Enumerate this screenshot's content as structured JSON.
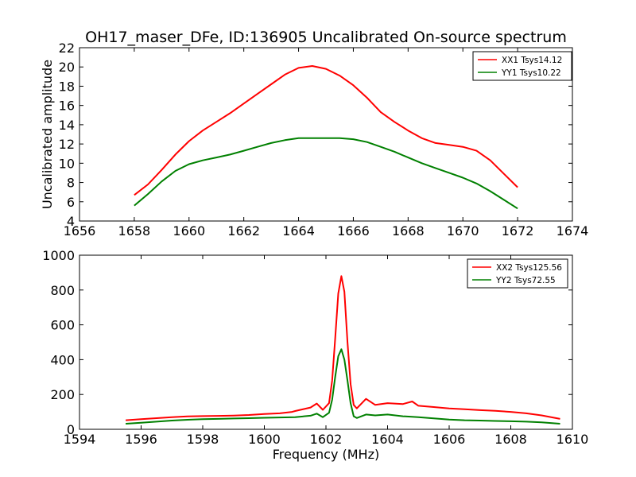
{
  "figure": {
    "title": "OH17_maser_DFe, ID:136905 Uncalibrated On-source spectrum",
    "xlabel": "Frequency (MHz)",
    "ylabel": "Uncalibrated amplitude"
  },
  "chart_data": [
    {
      "type": "line",
      "title": "OH17_maser_DFe, ID:136905 Uncalibrated On-source spectrum",
      "xlabel": "",
      "ylabel": "Uncalibrated amplitude",
      "xlim": [
        1656,
        1674
      ],
      "ylim": [
        4,
        22
      ],
      "xticks": [
        1656,
        1658,
        1660,
        1662,
        1664,
        1666,
        1668,
        1670,
        1672,
        1674
      ],
      "yticks": [
        4,
        6,
        8,
        10,
        12,
        14,
        16,
        18,
        20,
        22
      ],
      "grid": false,
      "legend_position": "top-right",
      "series": [
        {
          "name": "XX1 Tsys14.12",
          "color": "#ff0000",
          "x": [
            1658.0,
            1658.5,
            1659.0,
            1659.5,
            1660.0,
            1660.5,
            1661.0,
            1661.5,
            1662.0,
            1662.5,
            1663.0,
            1663.5,
            1664.0,
            1664.5,
            1665.0,
            1665.5,
            1666.0,
            1666.5,
            1667.0,
            1667.5,
            1668.0,
            1668.5,
            1669.0,
            1669.5,
            1670.0,
            1670.5,
            1671.0,
            1671.5,
            1672.0
          ],
          "y": [
            6.7,
            7.8,
            9.3,
            10.9,
            12.3,
            13.4,
            14.3,
            15.2,
            16.2,
            17.2,
            18.2,
            19.2,
            19.9,
            20.1,
            19.8,
            19.1,
            18.1,
            16.8,
            15.3,
            14.3,
            13.4,
            12.6,
            12.1,
            11.9,
            11.7,
            11.3,
            10.3,
            8.9,
            7.5
          ]
        },
        {
          "name": "YY1 Tsys10.22",
          "color": "#008000",
          "x": [
            1658.0,
            1658.5,
            1659.0,
            1659.5,
            1660.0,
            1660.5,
            1661.0,
            1661.5,
            1662.0,
            1662.5,
            1663.0,
            1663.5,
            1664.0,
            1664.5,
            1665.0,
            1665.5,
            1666.0,
            1666.5,
            1667.0,
            1667.5,
            1668.0,
            1668.5,
            1669.0,
            1669.5,
            1670.0,
            1670.5,
            1671.0,
            1671.5,
            1672.0
          ],
          "y": [
            5.6,
            6.8,
            8.1,
            9.2,
            9.9,
            10.3,
            10.6,
            10.9,
            11.3,
            11.7,
            12.1,
            12.4,
            12.6,
            12.6,
            12.6,
            12.6,
            12.5,
            12.2,
            11.7,
            11.2,
            10.6,
            10.0,
            9.5,
            9.0,
            8.5,
            7.9,
            7.1,
            6.2,
            5.3
          ]
        }
      ]
    },
    {
      "type": "line",
      "title": "",
      "xlabel": "Frequency (MHz)",
      "ylabel": "",
      "xlim": [
        1594,
        1610
      ],
      "ylim": [
        0,
        1000
      ],
      "xticks": [
        1594,
        1596,
        1598,
        1600,
        1602,
        1604,
        1606,
        1608,
        1610
      ],
      "yticks": [
        0,
        200,
        400,
        600,
        800,
        1000
      ],
      "grid": false,
      "legend_position": "top-right",
      "series": [
        {
          "name": "XX2 Tsys125.56",
          "color": "#ff0000",
          "x": [
            1595.5,
            1596.0,
            1596.5,
            1597.0,
            1597.5,
            1598.0,
            1598.5,
            1599.0,
            1599.5,
            1600.0,
            1600.5,
            1600.9,
            1601.0,
            1601.5,
            1601.7,
            1601.9,
            1602.1,
            1602.2,
            1602.3,
            1602.4,
            1602.5,
            1602.6,
            1602.7,
            1602.8,
            1602.9,
            1603.0,
            1603.3,
            1603.6,
            1604.0,
            1604.5,
            1604.8,
            1605.0,
            1605.5,
            1606.0,
            1606.5,
            1607.0,
            1607.5,
            1608.0,
            1608.5,
            1609.0,
            1609.6
          ],
          "y": [
            52,
            58,
            64,
            70,
            74,
            76,
            77,
            79,
            82,
            88,
            92,
            100,
            105,
            125,
            148,
            112,
            150,
            280,
            520,
            780,
            880,
            790,
            500,
            260,
            140,
            120,
            175,
            140,
            150,
            145,
            160,
            135,
            128,
            120,
            115,
            110,
            106,
            100,
            92,
            80,
            60
          ]
        },
        {
          "name": "YY2 Tsys72.55",
          "color": "#008000",
          "x": [
            1595.5,
            1596.0,
            1596.5,
            1597.0,
            1597.5,
            1598.0,
            1598.5,
            1599.0,
            1599.5,
            1600.0,
            1600.5,
            1601.0,
            1601.5,
            1601.7,
            1601.9,
            1602.1,
            1602.2,
            1602.3,
            1602.4,
            1602.5,
            1602.6,
            1602.7,
            1602.8,
            1602.9,
            1603.0,
            1603.3,
            1603.6,
            1604.0,
            1604.5,
            1605.0,
            1605.5,
            1606.0,
            1606.5,
            1607.0,
            1607.5,
            1608.0,
            1608.5,
            1609.0,
            1609.6
          ],
          "y": [
            32,
            38,
            44,
            50,
            55,
            58,
            60,
            62,
            64,
            66,
            68,
            70,
            78,
            90,
            70,
            95,
            170,
            300,
            420,
            460,
            400,
            280,
            150,
            75,
            65,
            85,
            80,
            85,
            75,
            70,
            63,
            56,
            52,
            50,
            48,
            46,
            44,
            40,
            32
          ]
        }
      ]
    }
  ]
}
